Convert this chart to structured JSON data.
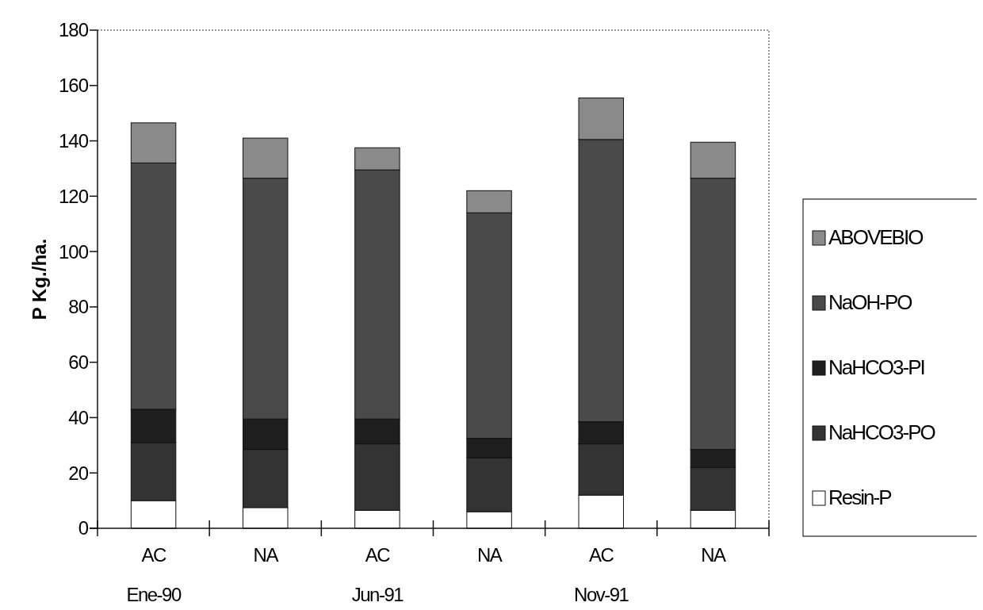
{
  "chart_data": {
    "type": "bar",
    "stacked": true,
    "ylabel": "P  Kg./ha.",
    "categories": [
      "AC",
      "NA",
      "AC",
      "NA",
      "AC",
      "NA"
    ],
    "annotations": [
      "Ene-90",
      "Jun-91",
      "Nov-91"
    ],
    "ylim": [
      0,
      180
    ],
    "yticks": [
      0,
      20,
      40,
      60,
      80,
      100,
      120,
      140,
      160,
      180
    ],
    "grid": false,
    "legend": "right",
    "series": [
      {
        "name": "Resin-P",
        "color": "#ffffff",
        "values": [
          10,
          7.5,
          6.5,
          6,
          12,
          6.5
        ]
      },
      {
        "name": "NaHCO3-PO",
        "color": "#333333",
        "values": [
          21,
          21,
          24,
          19.5,
          18.5,
          15.5
        ]
      },
      {
        "name": "NaHCO3-PI",
        "color": "#1e1e1e",
        "values": [
          12,
          11,
          9,
          7,
          8,
          6.5
        ]
      },
      {
        "name": "NaOH-PO",
        "color": "#4a4a4a",
        "values": [
          89,
          87,
          90,
          81.5,
          102,
          98
        ]
      },
      {
        "name": "ABOVEBIO",
        "color": "#8a8a8a",
        "values": [
          14.5,
          14.5,
          8,
          8,
          15,
          13
        ]
      }
    ]
  }
}
